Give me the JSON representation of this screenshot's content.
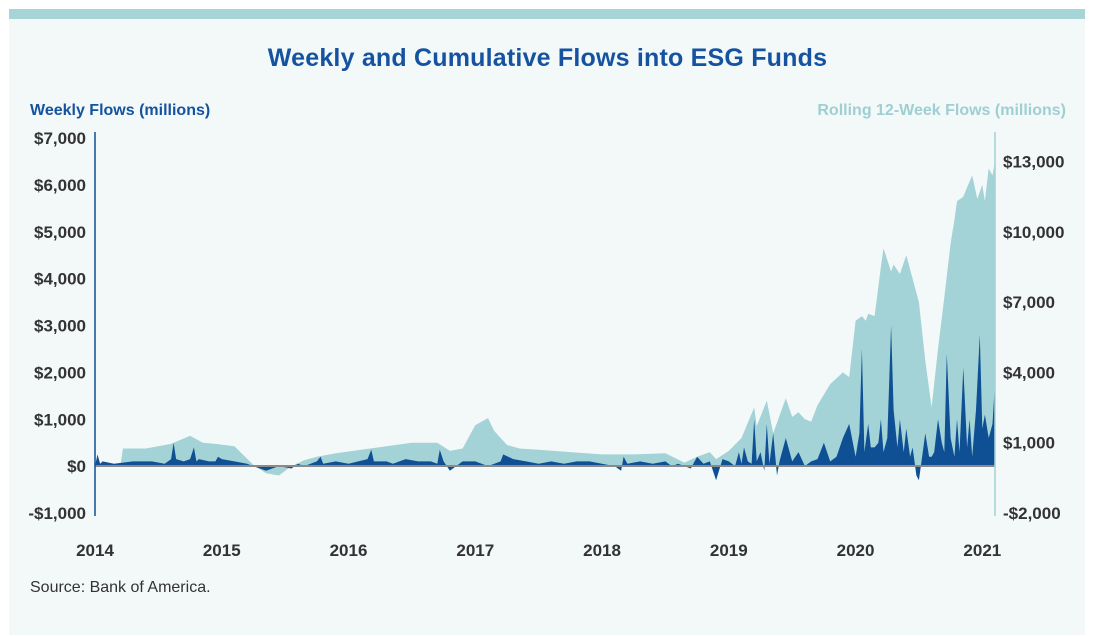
{
  "title": "Weekly and Cumulative Flows into ESG Funds",
  "left_axis_title": "Weekly Flows (millions)",
  "right_axis_title": "Rolling 12-Week Flows (millions)",
  "source": "Source: Bank of America.",
  "colors": {
    "weekly": "#0f4f94",
    "rolling": "#a3d3d6",
    "title": "#1553a0",
    "panel": "#f3f8f9",
    "zero_line": "#8a8a8a"
  },
  "chart_data": {
    "type": "area",
    "title": "Weekly and Cumulative Flows into ESG Funds",
    "x_tick_labels": [
      "2014",
      "2015",
      "2016",
      "2017",
      "2018",
      "2019",
      "2020",
      "2021"
    ],
    "x_range": [
      2014.0,
      2021.1
    ],
    "left_axis": {
      "label": "Weekly Flows (millions)",
      "range": [
        -1000,
        7000
      ],
      "ticks": [
        -1000,
        0,
        1000,
        2000,
        3000,
        4000,
        5000,
        6000,
        7000
      ],
      "tick_labels": [
        "-$1,000",
        "$0",
        "$1,000",
        "$2,000",
        "$3,000",
        "$4,000",
        "$5,000",
        "$6,000",
        "$7,000"
      ]
    },
    "right_axis": {
      "label": "Rolling 12-Week Flows (millions)",
      "range": [
        -2000,
        14000
      ],
      "ticks": [
        -2000,
        1000,
        4000,
        7000,
        10000,
        13000
      ],
      "tick_labels": [
        "-$2,000",
        "$1,000",
        "$4,000",
        "$7,000",
        "$10,000",
        "$13,000"
      ]
    },
    "series": [
      {
        "name": "Rolling 12-Week Flows (millions)",
        "axis": "right",
        "x": [
          2014.0,
          2014.2,
          2014.22,
          2014.4,
          2014.6,
          2014.75,
          2014.85,
          2014.95,
          2015.1,
          2015.25,
          2015.35,
          2015.45,
          2015.55,
          2015.65,
          2015.75,
          2015.9,
          2016.1,
          2016.3,
          2016.5,
          2016.7,
          2016.8,
          2016.9,
          2017.0,
          2017.1,
          2017.15,
          2017.25,
          2017.35,
          2017.5,
          2017.75,
          2018.0,
          2018.25,
          2018.5,
          2018.65,
          2018.75,
          2018.85,
          2018.9,
          2019.0,
          2019.1,
          2019.2,
          2019.22,
          2019.3,
          2019.35,
          2019.4,
          2019.45,
          2019.5,
          2019.55,
          2019.6,
          2019.65,
          2019.7,
          2019.8,
          2019.9,
          2019.95,
          2020.0,
          2020.05,
          2020.08,
          2020.1,
          2020.15,
          2020.2,
          2020.22,
          2020.28,
          2020.3,
          2020.35,
          2020.4,
          2020.45,
          2020.5,
          2020.55,
          2020.6,
          2020.65,
          2020.7,
          2020.75,
          2020.78,
          2020.8,
          2020.85,
          2020.88,
          2020.92,
          2020.96,
          2021.0,
          2021.02,
          2021.05,
          2021.08,
          2021.1
        ],
        "values": [
          0,
          0,
          750,
          750,
          950,
          1300,
          1000,
          950,
          850,
          50,
          -300,
          -400,
          0,
          250,
          400,
          550,
          700,
          850,
          1000,
          1000,
          650,
          750,
          1750,
          2050,
          1500,
          900,
          750,
          700,
          600,
          500,
          500,
          550,
          150,
          400,
          600,
          300,
          650,
          1200,
          2500,
          1700,
          2800,
          1400,
          2150,
          2900,
          2100,
          2300,
          2000,
          1900,
          2600,
          3500,
          4000,
          3800,
          6200,
          6400,
          6200,
          6500,
          6400,
          8500,
          9300,
          8300,
          8600,
          8200,
          9000,
          8000,
          7000,
          4500,
          2500,
          5000,
          7200,
          9500,
          10500,
          11300,
          11500,
          11900,
          12400,
          11400,
          12000,
          11300,
          12700,
          12400,
          13000
        ]
      },
      {
        "name": "Weekly Flows (millions)",
        "axis": "left",
        "x": [
          2014.0,
          2014.02,
          2014.04,
          2014.06,
          2014.15,
          2014.3,
          2014.45,
          2014.55,
          2014.6,
          2014.62,
          2014.64,
          2014.7,
          2014.75,
          2014.78,
          2014.8,
          2014.82,
          2014.9,
          2014.95,
          2014.97,
          2015.0,
          2015.1,
          2015.2,
          2015.3,
          2015.35,
          2015.45,
          2015.55,
          2015.6,
          2015.65,
          2015.75,
          2015.78,
          2015.8,
          2015.9,
          2016.0,
          2016.15,
          2016.18,
          2016.2,
          2016.3,
          2016.35,
          2016.45,
          2016.55,
          2016.65,
          2016.7,
          2016.72,
          2016.75,
          2016.8,
          2016.9,
          2017.0,
          2017.1,
          2017.2,
          2017.22,
          2017.3,
          2017.4,
          2017.5,
          2017.6,
          2017.7,
          2017.8,
          2017.9,
          2018.0,
          2018.1,
          2018.15,
          2018.17,
          2018.2,
          2018.3,
          2018.4,
          2018.5,
          2018.55,
          2018.6,
          2018.7,
          2018.75,
          2018.8,
          2018.85,
          2018.9,
          2018.95,
          2019.0,
          2019.05,
          2019.08,
          2019.1,
          2019.12,
          2019.15,
          2019.18,
          2019.2,
          2019.22,
          2019.25,
          2019.28,
          2019.3,
          2019.32,
          2019.35,
          2019.38,
          2019.4,
          2019.45,
          2019.5,
          2019.55,
          2019.6,
          2019.65,
          2019.7,
          2019.75,
          2019.8,
          2019.85,
          2019.9,
          2019.95,
          2020.0,
          2020.03,
          2020.05,
          2020.07,
          2020.1,
          2020.12,
          2020.15,
          2020.18,
          2020.2,
          2020.22,
          2020.25,
          2020.28,
          2020.3,
          2020.33,
          2020.35,
          2020.38,
          2020.4,
          2020.43,
          2020.45,
          2020.48,
          2020.5,
          2020.52,
          2020.55,
          2020.58,
          2020.6,
          2020.62,
          2020.65,
          2020.68,
          2020.7,
          2020.72,
          2020.75,
          2020.78,
          2020.8,
          2020.82,
          2020.85,
          2020.88,
          2020.9,
          2020.92,
          2020.95,
          2020.98,
          2021.0,
          2021.02,
          2021.05,
          2021.08,
          2021.1
        ],
        "values": [
          0,
          250,
          50,
          100,
          50,
          100,
          100,
          50,
          150,
          500,
          150,
          100,
          150,
          400,
          100,
          150,
          100,
          100,
          200,
          150,
          100,
          50,
          -50,
          -100,
          0,
          -50,
          50,
          0,
          100,
          200,
          50,
          100,
          50,
          150,
          350,
          100,
          100,
          50,
          150,
          100,
          100,
          50,
          350,
          100,
          -100,
          100,
          100,
          0,
          100,
          250,
          150,
          100,
          50,
          100,
          50,
          100,
          100,
          50,
          0,
          -100,
          200,
          50,
          100,
          50,
          100,
          0,
          50,
          -50,
          200,
          50,
          100,
          -300,
          150,
          100,
          0,
          300,
          50,
          400,
          100,
          50,
          1000,
          100,
          300,
          -100,
          900,
          50,
          700,
          -200,
          100,
          600,
          100,
          300,
          0,
          100,
          150,
          500,
          100,
          200,
          600,
          900,
          200,
          700,
          2500,
          300,
          900,
          400,
          400,
          500,
          1000,
          300,
          600,
          3000,
          1200,
          400,
          1000,
          300,
          800,
          200,
          400,
          -200,
          -300,
          100,
          700,
          200,
          200,
          300,
          1000,
          500,
          300,
          2400,
          600,
          200,
          1000,
          300,
          2100,
          400,
          1000,
          200,
          1200,
          2800,
          800,
          1100,
          600,
          900,
          1800
        ]
      }
    ]
  }
}
